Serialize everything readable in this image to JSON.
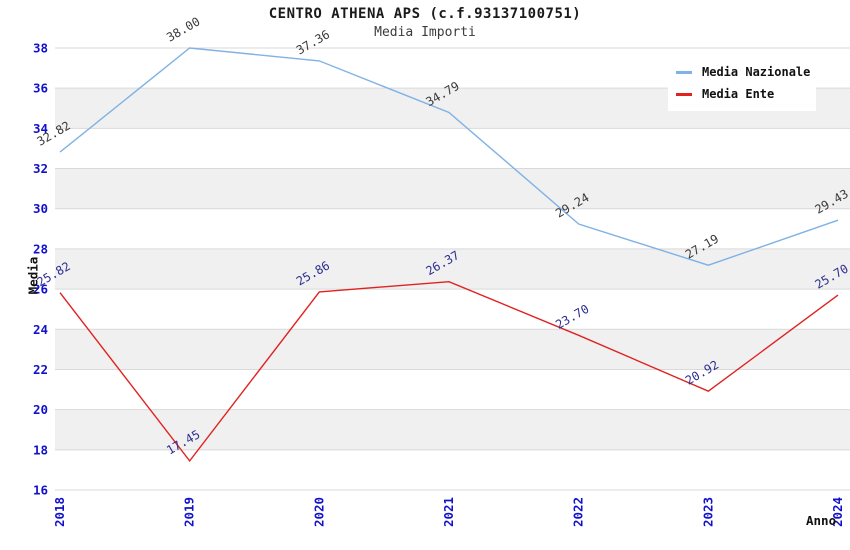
{
  "header": {
    "title": "CENTRO ATHENA APS (c.f.93137100751)",
    "subtitle": "Media Importi"
  },
  "axes": {
    "y_title": "Media",
    "x_title": "Anno",
    "tick_color": "#1111cc"
  },
  "style": {
    "band_color": "#f0f0f0",
    "gridline_color": "#d9d9d9",
    "background": "#ffffff"
  },
  "chart_data": {
    "type": "line",
    "title": "CENTRO ATHENA APS (c.f.93137100751)",
    "subtitle": "Media Importi",
    "xlabel": "Anno",
    "ylabel": "Media",
    "x": [
      "2018",
      "2019",
      "2020",
      "2021",
      "2022",
      "2023",
      "2024"
    ],
    "series": [
      {
        "name": "Media Nazionale",
        "color": "#7fb2e5",
        "label_color": "#3a3a3a",
        "values": [
          32.82,
          38.0,
          37.36,
          34.79,
          29.24,
          27.19,
          29.43
        ]
      },
      {
        "name": "Media Ente",
        "color": "#e02222",
        "label_color": "#2d2d91",
        "values": [
          25.82,
          17.45,
          25.86,
          26.37,
          23.7,
          20.92,
          25.7
        ]
      }
    ],
    "ylim": [
      16,
      38
    ],
    "ytick_step": 2,
    "grid": "horizontal-bands",
    "legend_position": "top-right",
    "value_label_decimals": 2
  }
}
